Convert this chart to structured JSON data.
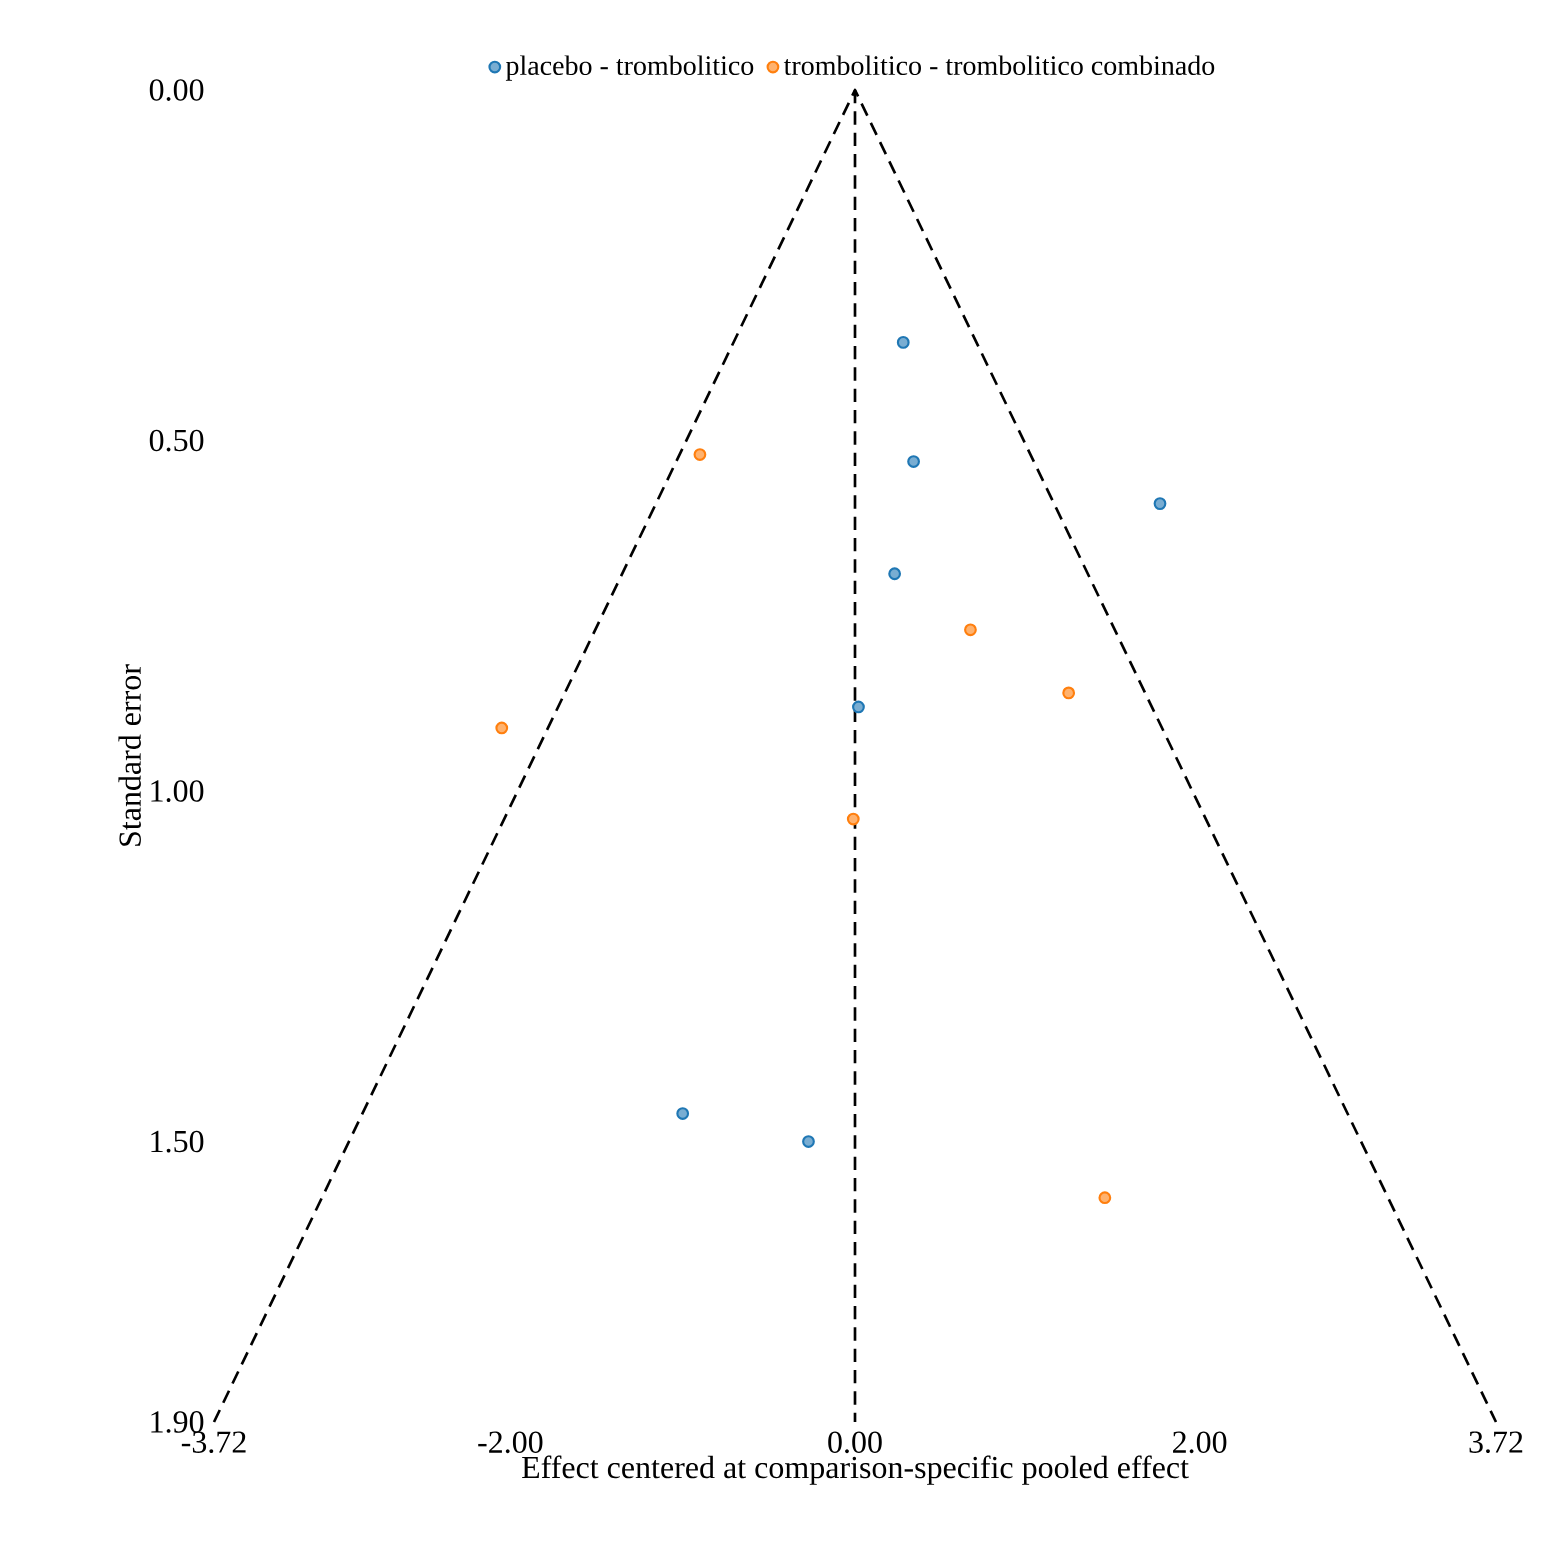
{
  "chart_data": {
    "type": "scatter",
    "xlabel": "Effect centered at comparison-specific pooled effect",
    "ylabel": "Standard error",
    "xlim": [
      -3.72,
      3.72
    ],
    "ylim": [
      1.9,
      0
    ],
    "xticks": [
      {
        "value": -3.72,
        "label": "-3.72"
      },
      {
        "value": -2,
        "label": "-2.00"
      },
      {
        "value": 0,
        "label": "0.00"
      },
      {
        "value": 2,
        "label": "2.00"
      },
      {
        "value": 3.72,
        "label": "3.72"
      }
    ],
    "yticks": [
      {
        "value": 0,
        "label": "0.00"
      },
      {
        "value": 0.5,
        "label": "0.50"
      },
      {
        "value": 1,
        "label": "1.00"
      },
      {
        "value": 1.5,
        "label": "1.50"
      },
      {
        "value": 1.9,
        "label": "1.90"
      }
    ],
    "series": [
      {
        "name": "placebo - trombolitico",
        "color": "#1f77b4",
        "marker": "circle",
        "x": [
          0.28,
          0.34,
          1.77,
          0.23,
          0.02,
          -1.0,
          -0.27
        ],
        "values": [
          0.36,
          0.53,
          0.59,
          0.69,
          0.88,
          1.46,
          1.5
        ]
      },
      {
        "name": "trombolitico - trombolitico combinado",
        "color": "#ff7f0e",
        "marker": "circle",
        "x": [
          -0.9,
          -2.05,
          0.67,
          1.24,
          -0.01,
          1.45
        ],
        "values": [
          0.52,
          0.91,
          0.77,
          0.86,
          1.04,
          1.58
        ]
      },
      {
        "type": "line",
        "color": "#000000",
        "line_style": "dashed",
        "marker": "none",
        "x": [
          -3.72,
          0,
          3.72
        ],
        "values": [
          1.9,
          0,
          1.9
        ]
      }
    ],
    "ref_lines": [
      {
        "axis": "x",
        "value": 0,
        "color": "#000000",
        "line_style": "dashed"
      }
    ],
    "grid": false,
    "legend": "top"
  }
}
